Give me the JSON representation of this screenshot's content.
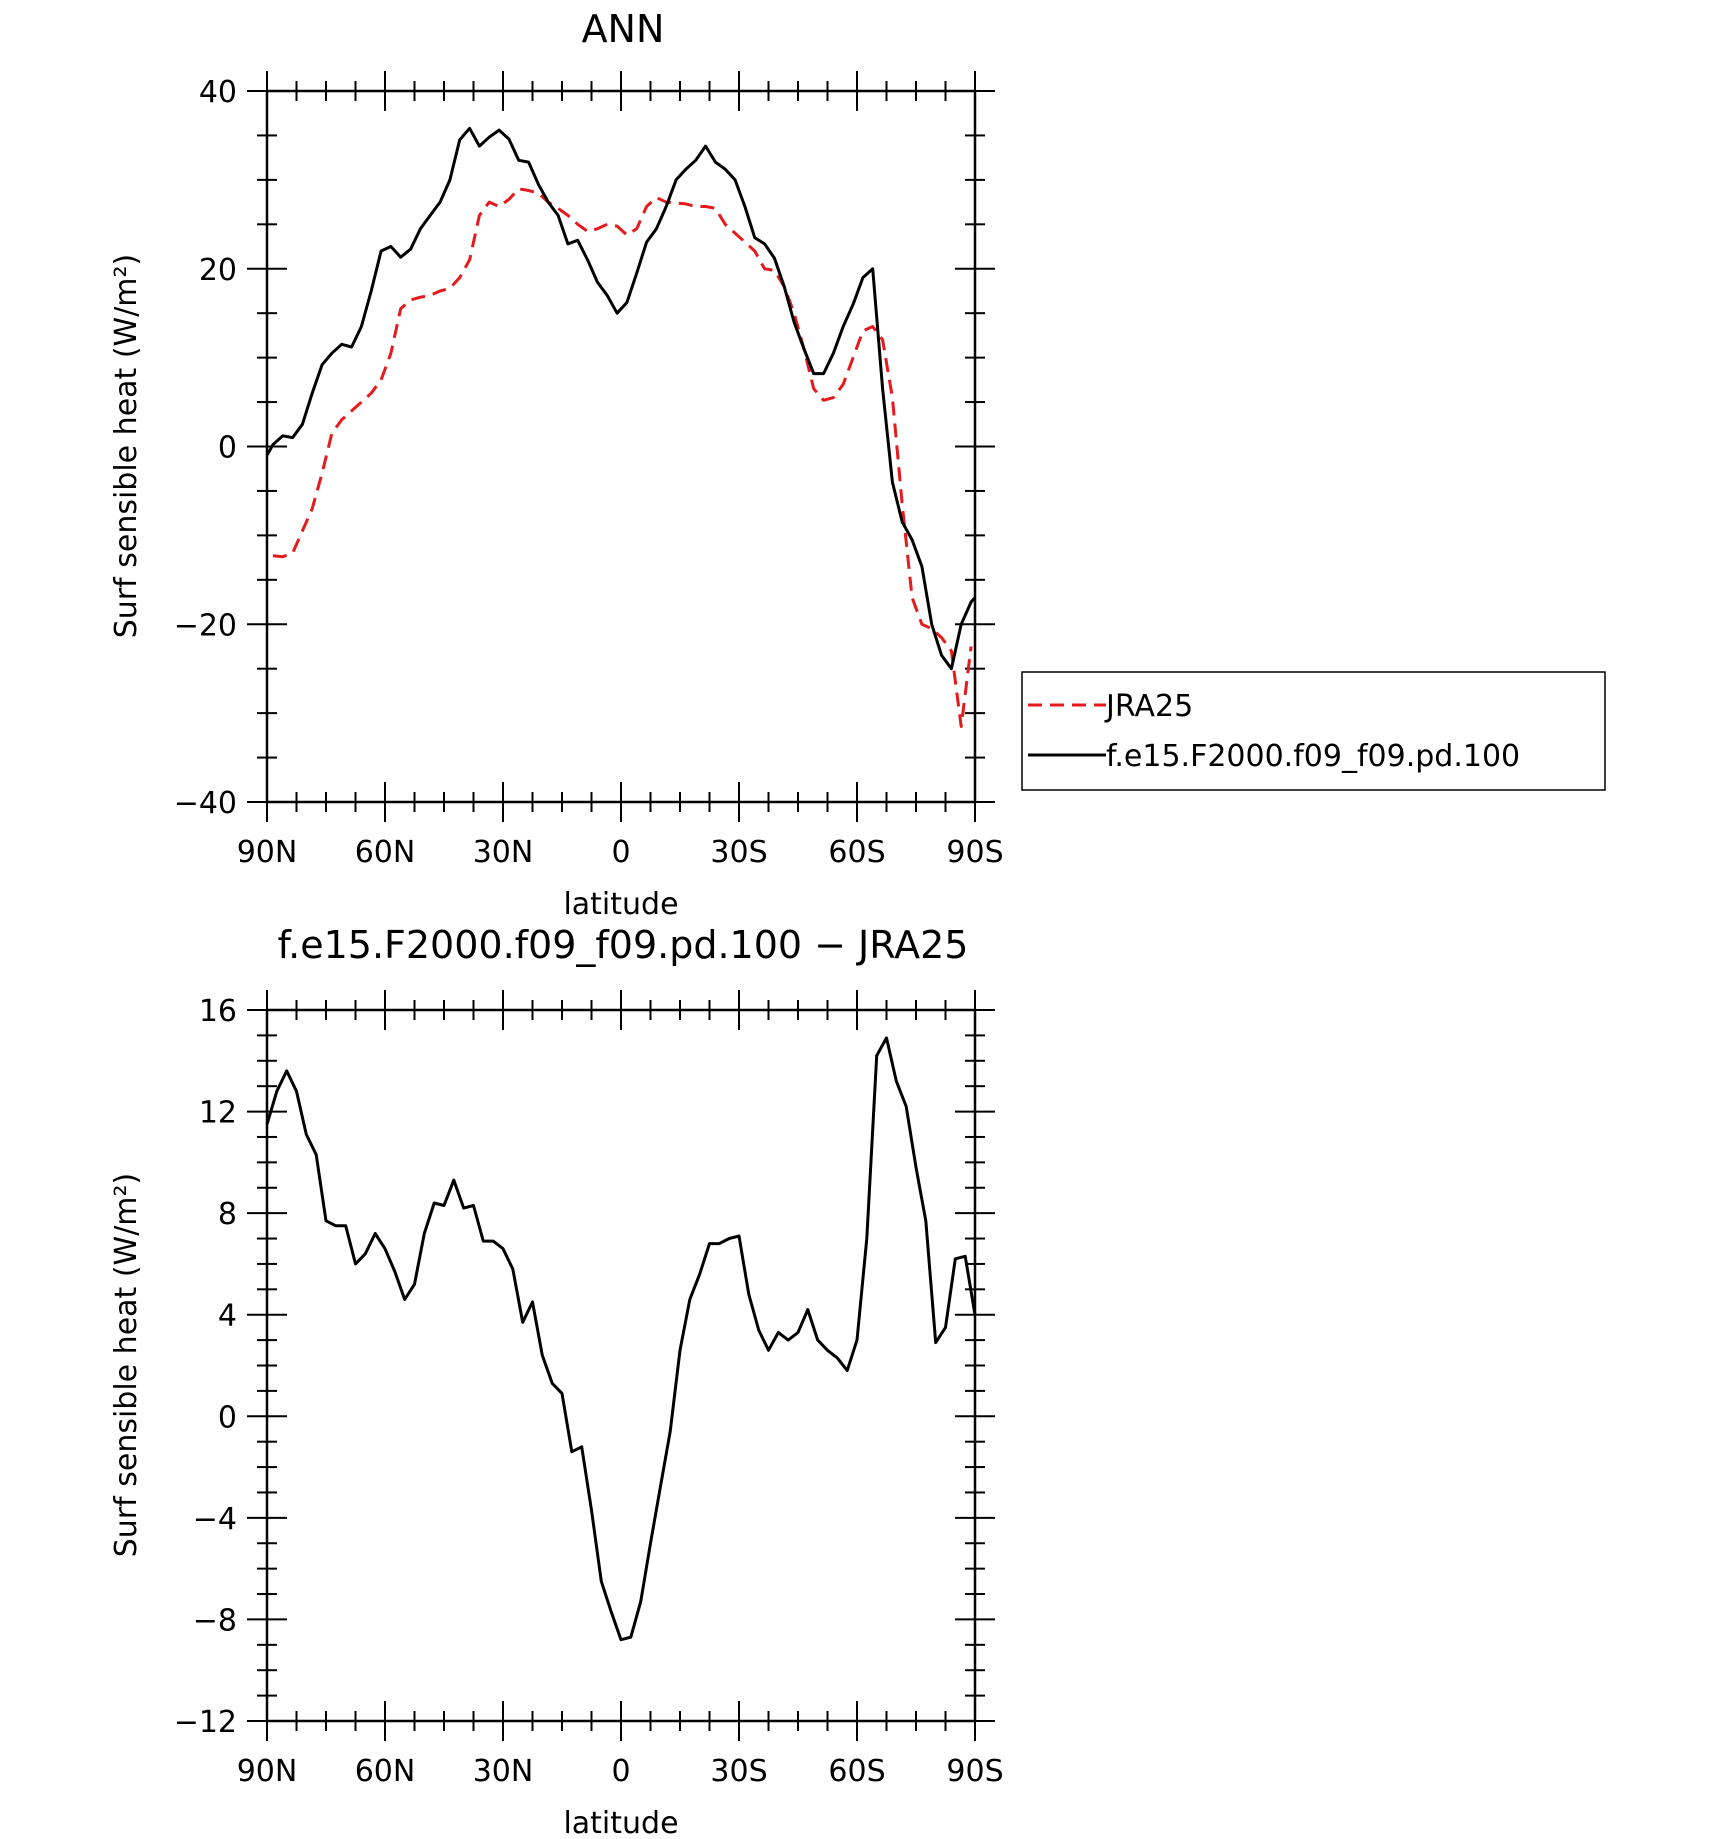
{
  "chart_data": [
    {
      "type": "line",
      "title": "ANN",
      "xlabel": "latitude",
      "ylabel": "Surf sensible heat (W/m²)",
      "xlim": [
        90,
        -90
      ],
      "ylim": [
        -40,
        40
      ],
      "x_ticks": [
        90,
        60,
        30,
        0,
        -30,
        -60,
        -90
      ],
      "x_tick_labels": [
        "90N",
        "60N",
        "30N",
        "0",
        "30S",
        "60S",
        "90S"
      ],
      "y_ticks": [
        -40,
        -20,
        0,
        20,
        40
      ],
      "y_tick_labels": [
        "−40",
        "−20",
        "0",
        "20",
        "40"
      ],
      "legend": {
        "position": "right"
      },
      "series": [
        {
          "name": "JRA25",
          "color": "#e41a1c",
          "dash": "dashed",
          "x": [
            88.5,
            86,
            83.5,
            81,
            78.5,
            76,
            73.5,
            71,
            68.5,
            66,
            63.5,
            61,
            58.5,
            56,
            53.5,
            51,
            48.5,
            46,
            43.5,
            41,
            38.5,
            36,
            33.5,
            31,
            28.5,
            26,
            23.5,
            21,
            18.5,
            16,
            13.5,
            11,
            8.5,
            6,
            3.5,
            1,
            -1.5,
            -4,
            -6.5,
            -9,
            -11.5,
            -14,
            -16.5,
            -19,
            -21.5,
            -24,
            -26.5,
            -29,
            -31.5,
            -34,
            -36.5,
            -39,
            -41.5,
            -44,
            -46.5,
            -49,
            -51.5,
            -54,
            -56.5,
            -59,
            -61.5,
            -64,
            -66.5,
            -69,
            -71.5,
            -74,
            -76.5,
            -79,
            -81.5,
            -84,
            -86.5,
            -89
          ],
          "y": [
            -12.3,
            -12.4,
            -12.0,
            -9.5,
            -7.0,
            -3.0,
            1.5,
            3.0,
            4.0,
            5.0,
            6.0,
            7.5,
            10.5,
            15.5,
            16.5,
            16.8,
            17.0,
            17.5,
            17.8,
            19.0,
            21.0,
            26.0,
            27.5,
            27.0,
            27.8,
            29.0,
            28.8,
            28.5,
            27.5,
            26.8,
            26.0,
            25.0,
            24.2,
            24.5,
            25.0,
            24.8,
            23.8,
            24.5,
            27.0,
            28.0,
            27.5,
            27.4,
            27.3,
            27.0,
            27.0,
            26.8,
            25.0,
            24.0,
            23.0,
            22.0,
            20.0,
            19.8,
            18.0,
            15.0,
            11.0,
            6.5,
            5.2,
            5.5,
            7.0,
            10.0,
            13.0,
            13.5,
            12.0,
            5.5,
            -6.5,
            -17.0,
            -20.0,
            -20.5,
            -21.5,
            -23.0,
            -31.5,
            -22.5
          ]
        },
        {
          "name": "f.e15.F2000.f09_f09.pd.100",
          "color": "#000000",
          "dash": "solid",
          "x": [
            90,
            88.5,
            86,
            83.5,
            81,
            78.5,
            76,
            73.5,
            71,
            68.5,
            66,
            63.5,
            61,
            58.5,
            56,
            53.5,
            51,
            48.5,
            46,
            43.5,
            41,
            38.5,
            36,
            33.5,
            31,
            28.5,
            26,
            23.5,
            21,
            18.5,
            16,
            13.5,
            11,
            8.5,
            6,
            3.5,
            1,
            -1.5,
            -4,
            -6.5,
            -9,
            -11.5,
            -14,
            -16.5,
            -19,
            -21.5,
            -24,
            -26.5,
            -29,
            -31.5,
            -34,
            -36.5,
            -39,
            -41.5,
            -44,
            -46.5,
            -49,
            -51.5,
            -54,
            -56.5,
            -59,
            -61.5,
            -64,
            -66.5,
            -69,
            -71.5,
            -74,
            -76.5,
            -79,
            -81.5,
            -84,
            -86.5,
            -89,
            -90
          ],
          "y": [
            -1.0,
            0.2,
            1.2,
            1.0,
            2.5,
            6.0,
            9.2,
            10.5,
            11.5,
            11.2,
            13.5,
            17.5,
            22.0,
            22.5,
            21.3,
            22.2,
            24.5,
            26.0,
            27.5,
            30.0,
            34.5,
            35.8,
            33.8,
            34.8,
            35.6,
            34.6,
            32.2,
            32.0,
            29.5,
            27.5,
            26.0,
            22.8,
            23.2,
            21.0,
            18.5,
            17.0,
            15.0,
            16.2,
            19.5,
            23.0,
            24.5,
            27.0,
            30.0,
            31.2,
            32.2,
            33.8,
            32.0,
            31.2,
            30.0,
            27.0,
            23.5,
            22.8,
            21.2,
            18.0,
            14.0,
            11.0,
            8.2,
            8.2,
            10.5,
            13.5,
            16.0,
            19.0,
            20.0,
            6.5,
            -4.0,
            -8.5,
            -10.5,
            -13.5,
            -20.0,
            -23.5,
            -25.0,
            -20.0,
            -17.5,
            -17.0
          ]
        }
      ]
    },
    {
      "type": "line",
      "title": "f.e15.F2000.f09_f09.pd.100 − JRA25",
      "xlabel": "latitude",
      "ylabel": "Surf sensible heat (W/m²)",
      "xlim": [
        90,
        -90
      ],
      "ylim": [
        -12,
        16
      ],
      "x_ticks": [
        90,
        60,
        30,
        0,
        -30,
        -60,
        -90
      ],
      "x_tick_labels": [
        "90N",
        "60N",
        "30N",
        "0",
        "30S",
        "60S",
        "90S"
      ],
      "y_ticks": [
        -12,
        -8,
        -4,
        0,
        4,
        8,
        12,
        16
      ],
      "y_tick_labels": [
        "−12",
        "−8",
        "−4",
        "0",
        "4",
        "8",
        "12",
        "16"
      ],
      "series": [
        {
          "color": "#000000",
          "dash": "solid",
          "x": [
            90,
            87.5,
            85,
            82.5,
            80,
            77.5,
            75,
            72.5,
            70,
            67.5,
            65,
            62.5,
            60,
            57.5,
            55,
            52.5,
            50,
            47.5,
            45,
            42.5,
            40,
            37.5,
            35,
            32.5,
            30,
            27.5,
            25,
            22.5,
            20,
            17.5,
            15,
            12.5,
            10,
            7.5,
            5,
            2.5,
            0,
            -2.5,
            -5,
            -7.5,
            -10,
            -12.5,
            -15,
            -17.5,
            -20,
            -22.5,
            -25,
            -27.5,
            -30,
            -32.5,
            -35,
            -37.5,
            -40,
            -42.5,
            -45,
            -47.5,
            -50,
            -52.5,
            -55,
            -57.5,
            -60,
            -62.5,
            -65,
            -67.5,
            -70,
            -72.5,
            -75,
            -77.5,
            -80,
            -82.5,
            -85,
            -87.5,
            -90
          ],
          "y": [
            11.5,
            12.8,
            13.6,
            12.8,
            11.1,
            10.3,
            7.7,
            7.5,
            7.5,
            6.0,
            6.4,
            7.2,
            6.6,
            5.7,
            4.6,
            5.2,
            7.2,
            8.4,
            8.3,
            9.3,
            8.2,
            8.3,
            6.9,
            6.9,
            6.6,
            5.8,
            3.7,
            4.5,
            2.4,
            1.3,
            0.9,
            -1.4,
            -1.2,
            -3.7,
            -6.5,
            -7.7,
            -8.8,
            -8.7,
            -7.3,
            -5.0,
            -2.8,
            -0.6,
            2.6,
            4.6,
            5.6,
            6.8,
            6.8,
            7.0,
            7.1,
            4.8,
            3.4,
            2.6,
            3.3,
            3.0,
            3.3,
            4.2,
            3.0,
            2.6,
            2.3,
            1.8,
            3.0,
            7.0,
            14.2,
            14.9,
            13.2,
            12.2,
            9.8,
            7.7,
            2.9,
            3.5,
            6.2,
            6.3,
            4.0
          ]
        }
      ]
    }
  ]
}
